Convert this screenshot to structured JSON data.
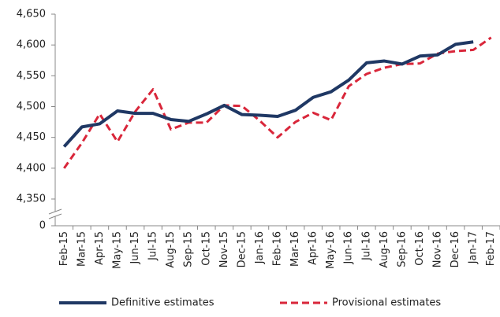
{
  "chart_data": {
    "type": "line",
    "categories": [
      "Feb-15",
      "Mar-15",
      "Apr-15",
      "May-15",
      "Jun-15",
      "Jul-15",
      "Aug-15",
      "Sep-15",
      "Oct-15",
      "Nov-15",
      "Dec-15",
      "Jan-16",
      "Feb-16",
      "Mar-16",
      "Apr-16",
      "May-16",
      "Jun-16",
      "Jul-16",
      "Aug-16",
      "Sep-16",
      "Oct-16",
      "Nov-16",
      "Dec-16",
      "Jan-17",
      "Feb-17"
    ],
    "series": [
      {
        "name": "Definitive estimates",
        "color": "#1f3864",
        "dashed": false,
        "values": [
          4435,
          4467,
          4472,
          4493,
          4489,
          4489,
          4479,
          4476,
          4488,
          4502,
          4487,
          4486,
          4484,
          4494,
          4515,
          4524,
          4543,
          4571,
          4574,
          4569,
          4582,
          4584,
          4601,
          4605,
          null
        ]
      },
      {
        "name": "Provisional estimates",
        "color": "#d9263a",
        "dashed": true,
        "values": [
          4400,
          4441,
          4488,
          4443,
          4492,
          4528,
          4463,
          4474,
          4474,
          4502,
          4501,
          4477,
          4450,
          4475,
          4490,
          4478,
          4533,
          4553,
          4563,
          4569,
          4570,
          4586,
          4590,
          4592,
          4612
        ]
      }
    ],
    "ylim": [
      0,
      4650
    ],
    "yticks": [
      0,
      {
        "value": 4350,
        "label": "4,350"
      },
      {
        "value": 4400,
        "label": "4,400"
      },
      {
        "value": 4450,
        "label": "4,450"
      },
      {
        "value": 4500,
        "label": "4,500"
      },
      {
        "value": 4550,
        "label": "4,550"
      },
      {
        "value": 4600,
        "label": "4,600"
      },
      {
        "value": 4650,
        "label": "4,650"
      }
    ],
    "axis_break": true,
    "grid": false,
    "legend": "bottom"
  }
}
